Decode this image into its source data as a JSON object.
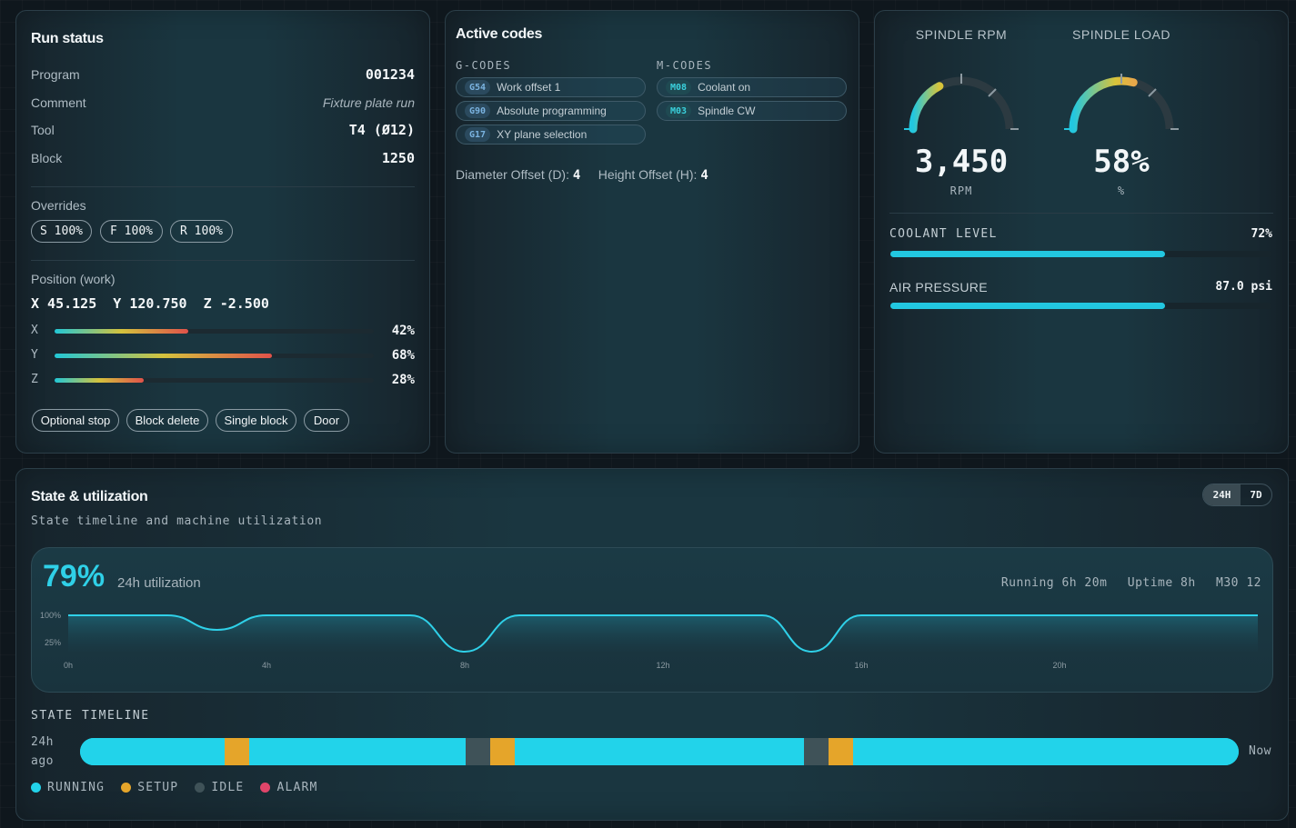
{
  "run_status": {
    "title": "Run status",
    "rows": [
      {
        "key": "Program",
        "value": "001234"
      },
      {
        "key": "Comment",
        "value": "Fixture plate run"
      },
      {
        "key": "Tool",
        "value": "T4 (Ø12)"
      },
      {
        "key": "Block",
        "value": "1250"
      }
    ],
    "overrides_label": "Overrides",
    "overrides": [
      "S 100%",
      "F 100%",
      "R 100%"
    ],
    "position_label": "Position (work)",
    "position": "X 45.125  Y 120.750  Z -2.500",
    "axes": [
      {
        "axis": "X",
        "percent": 42,
        "label": "42%"
      },
      {
        "axis": "Y",
        "percent": 68,
        "label": "68%"
      },
      {
        "axis": "Z",
        "percent": 28,
        "label": "28%"
      }
    ],
    "toggles": [
      "Optional stop",
      "Block delete",
      "Single block",
      "Door"
    ]
  },
  "active_codes": {
    "title": "Active codes",
    "g_head": "G-CODES",
    "m_head": "M-CODES",
    "g_codes": [
      {
        "code": "G54",
        "desc": "Work offset 1"
      },
      {
        "code": "G90",
        "desc": "Absolute programming"
      },
      {
        "code": "G17",
        "desc": "XY plane selection"
      }
    ],
    "m_codes": [
      {
        "code": "M08",
        "desc": "Coolant on"
      },
      {
        "code": "M03",
        "desc": "Spindle CW"
      }
    ],
    "diameter_label": "Diameter Offset (D):",
    "diameter_value": "4",
    "height_label": "Height Offset (H):",
    "height_value": "4"
  },
  "spindle": {
    "rpm_label": "SPINDLE RPM",
    "rpm_value": "3,450",
    "rpm_unit": "RPM",
    "rpm_fraction": 0.35,
    "load_label": "SPINDLE LOAD",
    "load_value": "58%",
    "load_unit": "%",
    "load_fraction": 0.58,
    "coolant_label": "COOLANT LEVEL",
    "coolant_value": "72%",
    "coolant_percent": 72,
    "air_label": "AIR PRESSURE",
    "air_value": "87.0 psi",
    "air_percent": 72
  },
  "state": {
    "title": "State & utilization",
    "subtitle": "State timeline and machine utilization",
    "range_options": [
      "24H",
      "7D"
    ],
    "range_selected": "24H",
    "utilization_value": "79%",
    "utilization_label": "24h utilization",
    "stats": [
      "Running 6h 20m",
      "Uptime 8h",
      "M30 12"
    ],
    "timeline_label": "STATE TIMELINE",
    "timeline_start": "24h ago",
    "timeline_end": "Now",
    "legend": [
      {
        "label": "RUNNING",
        "color": "#22d3ea"
      },
      {
        "label": "SETUP",
        "color": "#e5a52a"
      },
      {
        "label": "IDLE",
        "color": "#3f5258"
      },
      {
        "label": "ALARM",
        "color": "#e0456a"
      }
    ],
    "timeline_segments": [
      {
        "state": "RUNNING",
        "start": 0,
        "end": 0.125
      },
      {
        "state": "SETUP",
        "start": 0.125,
        "end": 0.146
      },
      {
        "state": "RUNNING",
        "start": 0.146,
        "end": 0.333
      },
      {
        "state": "IDLE",
        "start": 0.333,
        "end": 0.354
      },
      {
        "state": "SETUP",
        "start": 0.354,
        "end": 0.375
      },
      {
        "state": "RUNNING",
        "start": 0.375,
        "end": 0.625
      },
      {
        "state": "IDLE",
        "start": 0.625,
        "end": 0.646
      },
      {
        "state": "SETUP",
        "start": 0.646,
        "end": 0.667
      },
      {
        "state": "RUNNING",
        "start": 0.667,
        "end": 1.0
      }
    ]
  },
  "chart_data": {
    "type": "line",
    "title": "",
    "xlabel": "",
    "ylabel": "",
    "x_ticks": [
      "0h",
      "4h",
      "8h",
      "12h",
      "16h",
      "20h"
    ],
    "y_ticks": [
      "100%",
      "25%"
    ],
    "xlim": [
      0,
      24
    ],
    "ylim": [
      0,
      110
    ],
    "series": [
      {
        "x": [
          0,
          2,
          3,
          4,
          6.9,
          8,
          9.1,
          14,
          15,
          16,
          24
        ],
        "y": [
          100,
          100,
          60,
          100,
          100,
          0,
          100,
          100,
          0,
          100,
          100
        ]
      }
    ]
  }
}
